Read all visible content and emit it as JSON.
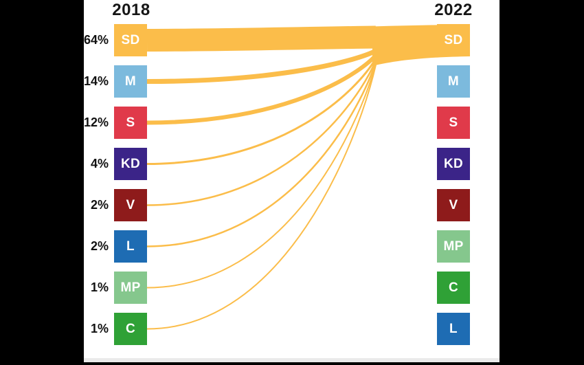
{
  "chart_data": {
    "type": "sankey",
    "columns": [
      "2018",
      "2022"
    ],
    "flow_color": "#FBBD4A",
    "legend_position": "none",
    "grid": false,
    "left_nodes": [
      {
        "party": "SD",
        "pct": 64,
        "pct_label": "64%",
        "color": "#FBBD4A"
      },
      {
        "party": "M",
        "pct": 14,
        "pct_label": "14%",
        "color": "#7CBADD"
      },
      {
        "party": "S",
        "pct": 12,
        "pct_label": "12%",
        "color": "#E03A4A"
      },
      {
        "party": "KD",
        "pct": 4,
        "pct_label": "4%",
        "color": "#3B2488"
      },
      {
        "party": "V",
        "pct": 2,
        "pct_label": "2%",
        "color": "#8E1B1B"
      },
      {
        "party": "L",
        "pct": 2,
        "pct_label": "2%",
        "color": "#1E6CB3"
      },
      {
        "party": "MP",
        "pct": 1,
        "pct_label": "1%",
        "color": "#85C78D"
      },
      {
        "party": "C",
        "pct": 1,
        "pct_label": "1%",
        "color": "#2FA136"
      }
    ],
    "right_nodes": [
      {
        "party": "SD",
        "color": "#FBBD4A"
      },
      {
        "party": "M",
        "color": "#7CBADD"
      },
      {
        "party": "S",
        "color": "#E03A4A"
      },
      {
        "party": "KD",
        "color": "#3B2488"
      },
      {
        "party": "V",
        "color": "#8E1B1B"
      },
      {
        "party": "MP",
        "color": "#85C78D"
      },
      {
        "party": "C",
        "color": "#2FA136"
      },
      {
        "party": "L",
        "color": "#1E6CB3"
      }
    ],
    "links": [
      {
        "source": "SD",
        "target": "SD",
        "value": 64
      },
      {
        "source": "M",
        "target": "SD",
        "value": 14
      },
      {
        "source": "S",
        "target": "SD",
        "value": 12
      },
      {
        "source": "KD",
        "target": "SD",
        "value": 4
      },
      {
        "source": "V",
        "target": "SD",
        "value": 2
      },
      {
        "source": "L",
        "target": "SD",
        "value": 2
      },
      {
        "source": "MP",
        "target": "SD",
        "value": 1
      },
      {
        "source": "C",
        "target": "SD",
        "value": 1
      }
    ]
  }
}
